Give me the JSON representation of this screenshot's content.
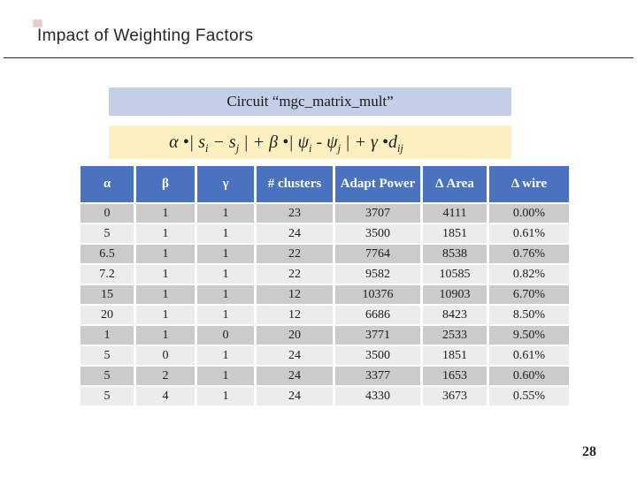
{
  "slide": {
    "title": "Impact of Weighting Factors",
    "page_number": "28"
  },
  "circuit_banner": {
    "text": "Circuit “mgc_matrix_mult”"
  },
  "formula": {
    "plain": "α •| si − sj | + β •| ψi - ψj | + γ •dij",
    "segments": [
      {
        "text": "α "
      },
      {
        "text": "•"
      },
      {
        "text": "| s"
      },
      {
        "text": "i",
        "sub": true
      },
      {
        "text": " − s"
      },
      {
        "text": "j",
        "sub": true
      },
      {
        "text": " | + β "
      },
      {
        "text": "•"
      },
      {
        "text": "| ψ"
      },
      {
        "text": "i",
        "sub": true
      },
      {
        "text": " - ψ"
      },
      {
        "text": "j",
        "sub": true
      },
      {
        "text": " | + γ "
      },
      {
        "text": "•"
      },
      {
        "text": "d"
      },
      {
        "text": "ij",
        "sub": true
      }
    ]
  },
  "table": {
    "headers": [
      "α",
      "β",
      "γ",
      "# clusters",
      "Adapt Power",
      "Δ Area",
      "Δ wire"
    ],
    "rows": [
      [
        "0",
        "1",
        "1",
        "23",
        "3707",
        "4111",
        "0.00%"
      ],
      [
        "5",
        "1",
        "1",
        "24",
        "3500",
        "1851",
        "0.61%"
      ],
      [
        "6.5",
        "1",
        "1",
        "22",
        "7764",
        "8538",
        "0.76%"
      ],
      [
        "7.2",
        "1",
        "1",
        "22",
        "9582",
        "10585",
        "0.82%"
      ],
      [
        "15",
        "1",
        "1",
        "12",
        "10376",
        "10903",
        "6.70%"
      ],
      [
        "20",
        "1",
        "1",
        "12",
        "6686",
        "8423",
        "8.50%"
      ],
      [
        "1",
        "1",
        "0",
        "20",
        "3771",
        "2533",
        "9.50%"
      ],
      [
        "5",
        "0",
        "1",
        "24",
        "3500",
        "1851",
        "0.61%"
      ],
      [
        "5",
        "2",
        "1",
        "24",
        "3377",
        "1653",
        "0.60%"
      ],
      [
        "5",
        "4",
        "1",
        "24",
        "4330",
        "3673",
        "0.55%"
      ]
    ]
  },
  "colors": {
    "header_bg": "#4a72be",
    "row_odd_bg": "#cccaca",
    "row_even_bg": "#edebeb",
    "banner_bg": "#c5cee8",
    "formula_bg": "#fdf0c0",
    "body_text": "#1c1c1c",
    "header_text": "#ffffff"
  }
}
